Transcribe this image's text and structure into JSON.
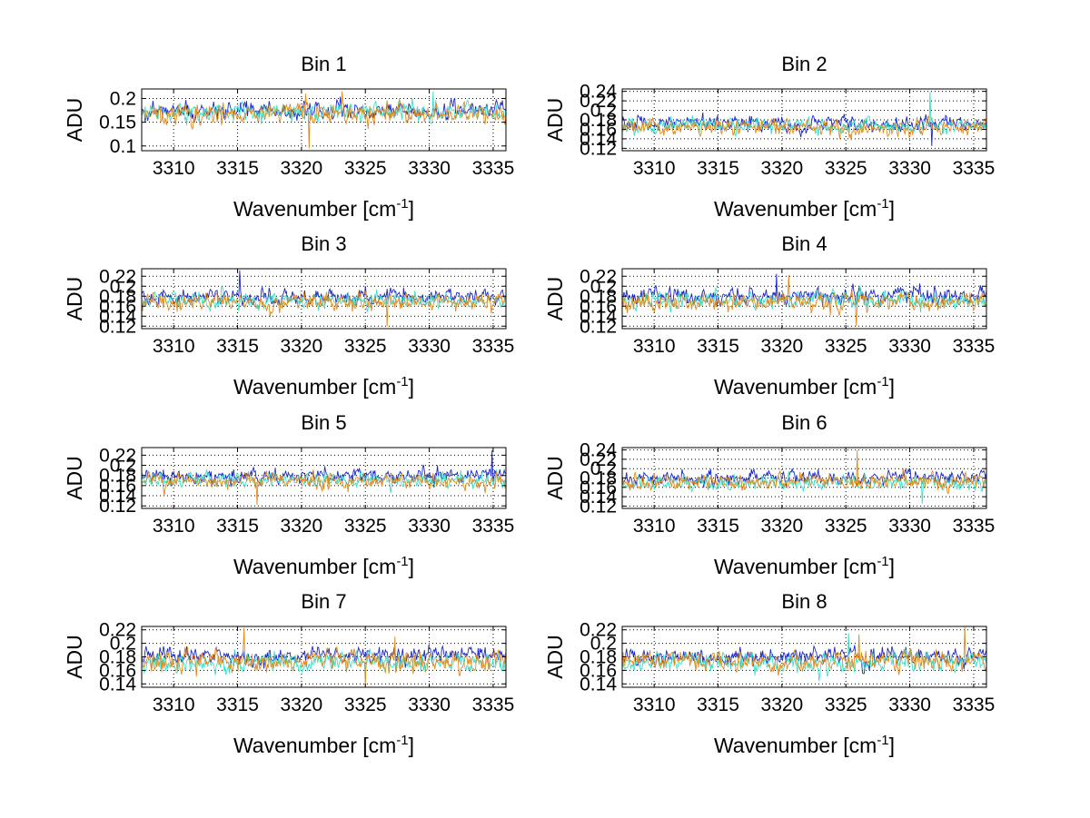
{
  "chart_data": [
    {
      "type": "line",
      "title": "Bin 1",
      "xlabel": "Wavenumber [cm",
      "xlabel_sup": "-1",
      "xlabel_end": "]",
      "ylabel": "ADU",
      "xlim": [
        3307.5,
        3336
      ],
      "ylim": [
        0.09,
        0.22
      ],
      "xticks": [
        3310,
        3315,
        3320,
        3325,
        3330,
        3335
      ],
      "xtick_labels": [
        "3310",
        "3315",
        "3320",
        "3325",
        "3330",
        "3335"
      ],
      "yticks": [
        0.1,
        0.15,
        0.2
      ],
      "ytick_labels": [
        "0.1",
        "0.15",
        "0.2"
      ],
      "series": [
        {
          "name": "blue",
          "mean": 0.175,
          "sd": 0.011
        },
        {
          "name": "teal",
          "mean": 0.172,
          "sd": 0.011
        },
        {
          "name": "orange",
          "mean": 0.168,
          "sd": 0.013
        }
      ],
      "spikes": [
        {
          "series": 2,
          "x": 3320.6,
          "y": 0.095
        },
        {
          "series": 2,
          "x": 3323.2,
          "y": 0.215
        },
        {
          "series": 2,
          "x": 3320.3,
          "y": 0.21
        },
        {
          "series": 1,
          "x": 3330.3,
          "y": 0.215
        }
      ]
    },
    {
      "type": "line",
      "title": "Bin 2",
      "xlabel": "Wavenumber [cm",
      "xlabel_sup": "-1",
      "xlabel_end": "]",
      "ylabel": "ADU",
      "xlim": [
        3307.5,
        3336
      ],
      "ylim": [
        0.115,
        0.245
      ],
      "xticks": [
        3310,
        3315,
        3320,
        3325,
        3330,
        3335
      ],
      "xtick_labels": [
        "3310",
        "3315",
        "3320",
        "3325",
        "3330",
        "3335"
      ],
      "yticks": [
        0.12,
        0.14,
        0.16,
        0.18,
        0.2,
        0.22,
        0.24
      ],
      "ytick_labels": [
        "0.12",
        "0.14",
        "0.16",
        "0.18",
        "0.2",
        "0.22",
        "0.24"
      ],
      "series": [
        {
          "name": "blue",
          "mean": 0.172,
          "sd": 0.009
        },
        {
          "name": "teal",
          "mean": 0.168,
          "sd": 0.009
        },
        {
          "name": "orange",
          "mean": 0.165,
          "sd": 0.01
        }
      ],
      "spikes": [
        {
          "series": 1,
          "x": 3331.6,
          "y": 0.24
        },
        {
          "series": 0,
          "x": 3331.7,
          "y": 0.125
        }
      ]
    },
    {
      "type": "line",
      "title": "Bin 3",
      "xlabel": "Wavenumber [cm",
      "xlabel_sup": "-1",
      "xlabel_end": "]",
      "ylabel": "ADU",
      "xlim": [
        3307.5,
        3336
      ],
      "ylim": [
        0.115,
        0.235
      ],
      "xticks": [
        3310,
        3315,
        3320,
        3325,
        3330,
        3335
      ],
      "xtick_labels": [
        "3310",
        "3315",
        "3320",
        "3325",
        "3330",
        "3335"
      ],
      "yticks": [
        0.12,
        0.14,
        0.16,
        0.18,
        0.2,
        0.22
      ],
      "ytick_labels": [
        "0.12",
        "0.14",
        "0.16",
        "0.18",
        "0.2",
        "0.22"
      ],
      "series": [
        {
          "name": "blue",
          "mean": 0.178,
          "sd": 0.009
        },
        {
          "name": "teal",
          "mean": 0.17,
          "sd": 0.009
        },
        {
          "name": "orange",
          "mean": 0.167,
          "sd": 0.01
        }
      ],
      "spikes": [
        {
          "series": 0,
          "x": 3315.2,
          "y": 0.232
        },
        {
          "series": 2,
          "x": 3326.7,
          "y": 0.12
        }
      ]
    },
    {
      "type": "line",
      "title": "Bin 4",
      "xlabel": "Wavenumber [cm",
      "xlabel_sup": "-1",
      "xlabel_end": "]",
      "ylabel": "ADU",
      "xlim": [
        3307.5,
        3336
      ],
      "ylim": [
        0.115,
        0.235
      ],
      "xticks": [
        3310,
        3315,
        3320,
        3325,
        3330,
        3335
      ],
      "xtick_labels": [
        "3310",
        "3315",
        "3320",
        "3325",
        "3330",
        "3335"
      ],
      "yticks": [
        0.12,
        0.14,
        0.16,
        0.18,
        0.2,
        0.22
      ],
      "ytick_labels": [
        "0.12",
        "0.14",
        "0.16",
        "0.18",
        "0.2",
        "0.22"
      ],
      "series": [
        {
          "name": "blue",
          "mean": 0.18,
          "sd": 0.01
        },
        {
          "name": "teal",
          "mean": 0.172,
          "sd": 0.01
        },
        {
          "name": "orange",
          "mean": 0.168,
          "sd": 0.011
        }
      ],
      "spikes": [
        {
          "series": 0,
          "x": 3319.6,
          "y": 0.225
        },
        {
          "series": 2,
          "x": 3320.5,
          "y": 0.222
        },
        {
          "series": 2,
          "x": 3325.8,
          "y": 0.12
        }
      ]
    },
    {
      "type": "line",
      "title": "Bin 5",
      "xlabel": "Wavenumber [cm",
      "xlabel_sup": "-1",
      "xlabel_end": "]",
      "ylabel": "ADU",
      "xlim": [
        3307.5,
        3336
      ],
      "ylim": [
        0.115,
        0.235
      ],
      "xticks": [
        3310,
        3315,
        3320,
        3325,
        3330,
        3335
      ],
      "xtick_labels": [
        "3310",
        "3315",
        "3320",
        "3325",
        "3330",
        "3335"
      ],
      "yticks": [
        0.12,
        0.14,
        0.16,
        0.18,
        0.2,
        0.22
      ],
      "ytick_labels": [
        "0.12",
        "0.14",
        "0.16",
        "0.18",
        "0.2",
        "0.22"
      ],
      "series": [
        {
          "name": "blue",
          "mean": 0.178,
          "sd": 0.009
        },
        {
          "name": "teal",
          "mean": 0.172,
          "sd": 0.009
        },
        {
          "name": "orange",
          "mean": 0.17,
          "sd": 0.01
        }
      ],
      "spikes": [
        {
          "series": 0,
          "x": 3334.9,
          "y": 0.23
        },
        {
          "series": 2,
          "x": 3316.5,
          "y": 0.122
        }
      ]
    },
    {
      "type": "line",
      "title": "Bin 6",
      "xlabel": "Wavenumber [cm",
      "xlabel_sup": "-1",
      "xlabel_end": "]",
      "ylabel": "ADU",
      "xlim": [
        3307.5,
        3336
      ],
      "ylim": [
        0.115,
        0.245
      ],
      "xticks": [
        3310,
        3315,
        3320,
        3325,
        3330,
        3335
      ],
      "xtick_labels": [
        "3310",
        "3315",
        "3320",
        "3325",
        "3330",
        "3335"
      ],
      "yticks": [
        0.12,
        0.14,
        0.16,
        0.18,
        0.2,
        0.22,
        0.24
      ],
      "ytick_labels": [
        "0.12",
        "0.14",
        "0.16",
        "0.18",
        "0.2",
        "0.22",
        "0.24"
      ],
      "series": [
        {
          "name": "blue",
          "mean": 0.18,
          "sd": 0.009
        },
        {
          "name": "teal",
          "mean": 0.17,
          "sd": 0.009
        },
        {
          "name": "orange",
          "mean": 0.172,
          "sd": 0.01
        }
      ],
      "spikes": [
        {
          "series": 2,
          "x": 3325.9,
          "y": 0.24
        },
        {
          "series": 1,
          "x": 3331.0,
          "y": 0.125
        }
      ]
    },
    {
      "type": "line",
      "title": "Bin 7",
      "xlabel": "Wavenumber [cm",
      "xlabel_sup": "-1",
      "xlabel_end": "]",
      "ylabel": "ADU",
      "xlim": [
        3307.5,
        3336
      ],
      "ylim": [
        0.135,
        0.225
      ],
      "xticks": [
        3310,
        3315,
        3320,
        3325,
        3330,
        3335
      ],
      "xtick_labels": [
        "3310",
        "3315",
        "3320",
        "3325",
        "3330",
        "3335"
      ],
      "yticks": [
        0.14,
        0.16,
        0.18,
        0.2,
        0.22
      ],
      "ytick_labels": [
        "0.14",
        "0.16",
        "0.18",
        "0.2",
        "0.22"
      ],
      "series": [
        {
          "name": "blue",
          "mean": 0.182,
          "sd": 0.008
        },
        {
          "name": "teal",
          "mean": 0.172,
          "sd": 0.008
        },
        {
          "name": "orange",
          "mean": 0.174,
          "sd": 0.009
        }
      ],
      "spikes": [
        {
          "series": 2,
          "x": 3315.5,
          "y": 0.223
        },
        {
          "series": 2,
          "x": 3325.0,
          "y": 0.138
        },
        {
          "series": 2,
          "x": 3327.3,
          "y": 0.21
        }
      ]
    },
    {
      "type": "line",
      "title": "Bin 8",
      "xlabel": "Wavenumber [cm",
      "xlabel_sup": "-1",
      "xlabel_end": "]",
      "ylabel": "ADU",
      "xlim": [
        3307.5,
        3336
      ],
      "ylim": [
        0.135,
        0.225
      ],
      "xticks": [
        3310,
        3315,
        3320,
        3325,
        3330,
        3335
      ],
      "xtick_labels": [
        "3310",
        "3315",
        "3320",
        "3325",
        "3330",
        "3335"
      ],
      "yticks": [
        0.14,
        0.16,
        0.18,
        0.2,
        0.22
      ],
      "ytick_labels": [
        "0.14",
        "0.16",
        "0.18",
        "0.2",
        "0.22"
      ],
      "series": [
        {
          "name": "blue",
          "mean": 0.18,
          "sd": 0.008
        },
        {
          "name": "teal",
          "mean": 0.172,
          "sd": 0.008
        },
        {
          "name": "orange",
          "mean": 0.174,
          "sd": 0.009
        }
      ],
      "spikes": [
        {
          "series": 2,
          "x": 3334.3,
          "y": 0.224
        },
        {
          "series": 1,
          "x": 3325.2,
          "y": 0.215
        },
        {
          "series": 2,
          "x": 3326.0,
          "y": 0.213
        }
      ]
    }
  ],
  "colors": {
    "blue": "#1b28c8",
    "teal": "#3be0c8",
    "orange": "#e08a1c",
    "grid": "#000000",
    "background": "#ffffff"
  }
}
